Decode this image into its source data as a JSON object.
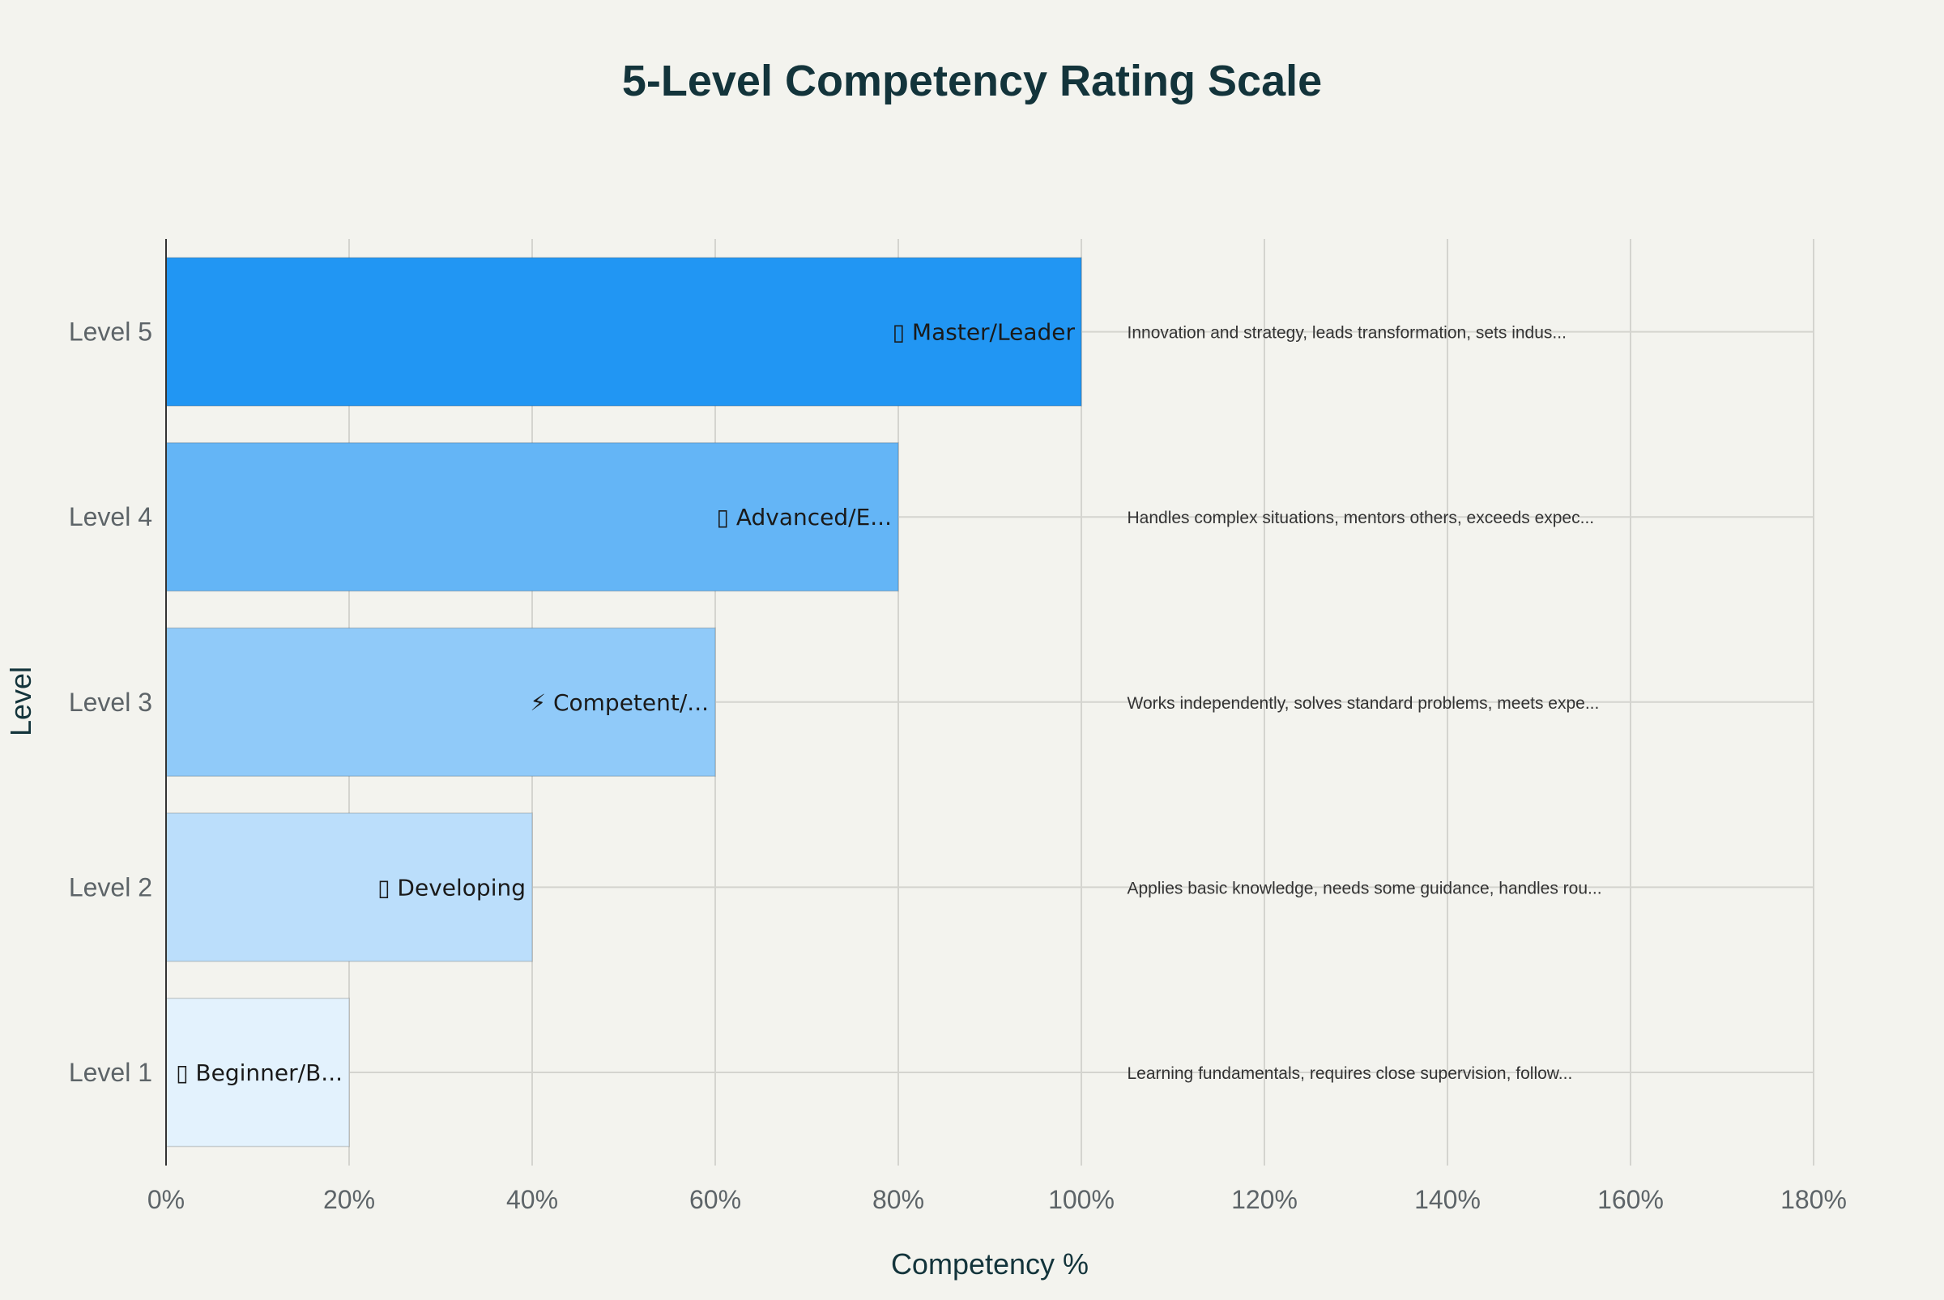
{
  "chart_data": {
    "type": "bar",
    "orientation": "horizontal",
    "title": "5-Level Competency Rating Scale",
    "xlabel": "Competency %",
    "ylabel": "Level",
    "xlim": [
      0,
      180
    ],
    "x_ticks": [
      "0%",
      "20%",
      "40%",
      "60%",
      "80%",
      "100%",
      "120%",
      "140%",
      "160%",
      "180%"
    ],
    "x_tick_values": [
      0,
      20,
      40,
      60,
      80,
      100,
      120,
      140,
      160,
      180
    ],
    "grid": true,
    "categories": [
      "Level 1",
      "Level 2",
      "Level 3",
      "Level 4",
      "Level 5"
    ],
    "values": [
      20,
      40,
      60,
      80,
      100
    ],
    "bar_labels": [
      "▯ Beginner/B...",
      "▯ Developing",
      "⚡ Competent/...",
      "▯ Advanced/E...",
      "▯ Master/Leader"
    ],
    "bar_colors": [
      "#e3f2fd",
      "#bbdefb",
      "#90caf9",
      "#64b5f6",
      "#2196f3"
    ],
    "annotations": [
      "Learning fundamentals, requires close supervision, follow...",
      "Applies basic knowledge, needs some guidance, handles rou...",
      "Works independently, solves standard problems, meets expe...",
      "Handles complex situations, mentors others, exceeds expec...",
      "Innovation and strategy, leads transformation, sets indus..."
    ],
    "annotation_x": 105
  }
}
